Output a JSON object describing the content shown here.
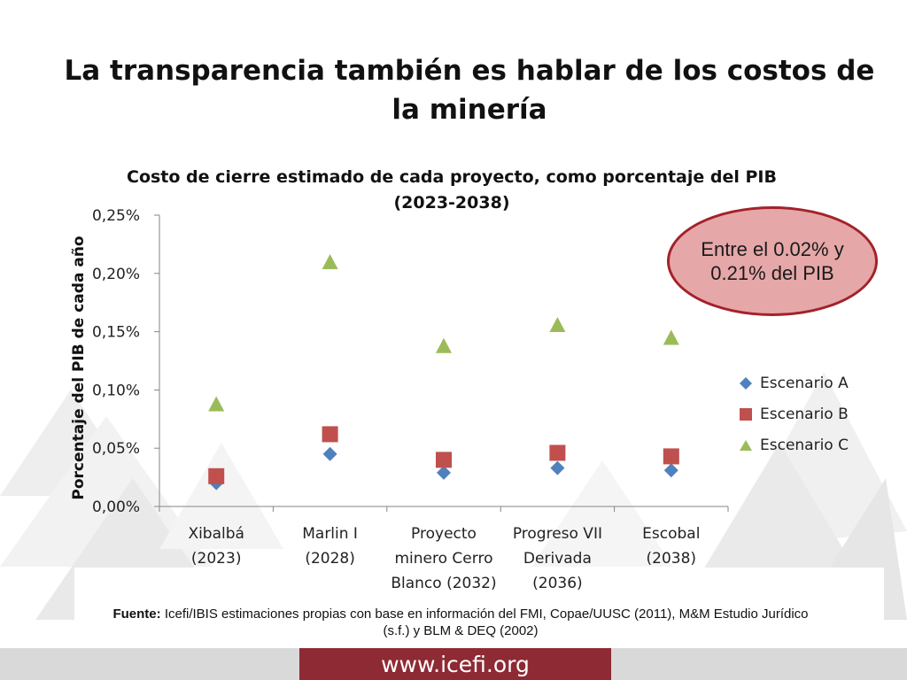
{
  "slide": {
    "title_line1": "La transparencia también es hablar de los costos de",
    "title_line2": "la minería",
    "callout_line1": "Entre el 0.02% y",
    "callout_line2": "0.21% del PIB",
    "source_label": "Fuente:",
    "source_text_line1": "Icefi/IBIS estimaciones propias con base en información del FMI,   Copae/UUSC (2011), M&M Estudio Jurídico",
    "source_text_line2": "(s.f.) y BLM & DEQ (2002)",
    "footer_url": "www.icefi.org",
    "colors": {
      "accent": "#8e2a33",
      "callout_fill": "#e6a7a9",
      "callout_border": "#a3222a"
    }
  },
  "chart_data": {
    "type": "scatter",
    "title_line1": "Costo de cierre estimado de cada proyecto, como porcentaje del PIB",
    "title_line2": "(2023-2038)",
    "ylabel": "Porcentaje del PIB de cada año",
    "xlabel": "",
    "ylim": [
      0,
      0.25
    ],
    "y_ticks": [
      0,
      0.05,
      0.1,
      0.15,
      0.2,
      0.25
    ],
    "y_tick_labels": [
      "0,00%",
      "0,05%",
      "0,10%",
      "0,15%",
      "0,20%",
      "0,25%"
    ],
    "categories": [
      [
        "Xibalbá",
        "(2023)"
      ],
      [
        "Marlin I",
        "(2028)"
      ],
      [
        "Proyecto",
        "minero Cerro",
        "Blanco (2032)"
      ],
      [
        "Progreso VII",
        "Derivada",
        "(2036)"
      ],
      [
        "Escobal",
        "(2038)"
      ]
    ],
    "legend_position": "right",
    "grid": false,
    "series": [
      {
        "name": "Escenario A",
        "marker": "diamond",
        "color": "#4f81bd",
        "values": [
          0.02,
          0.045,
          0.029,
          0.033,
          0.031
        ]
      },
      {
        "name": "Escenario B",
        "marker": "square",
        "color": "#c0504d",
        "values": [
          0.026,
          0.062,
          0.04,
          0.046,
          0.043
        ]
      },
      {
        "name": "Escenario C",
        "marker": "triangle",
        "color": "#9bbb59",
        "values": [
          0.087,
          0.209,
          0.137,
          0.155,
          0.144
        ]
      }
    ]
  }
}
